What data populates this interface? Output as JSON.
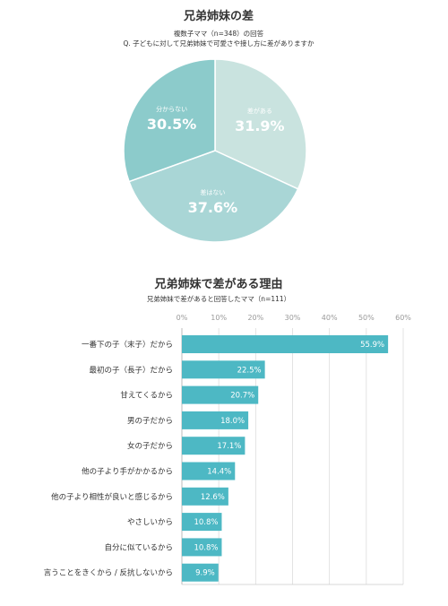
{
  "chart_data": [
    {
      "type": "pie",
      "title": "兄弟姉妹の差",
      "subtitle_1": "複数子ママ（n=348）の回答",
      "subtitle_2": "Q. 子どもに対して兄弟姉妹で可愛さや接し方に差がありますか",
      "slices": [
        {
          "label": "差がある",
          "value": 31.9,
          "value_label": "31.9%",
          "color": "#c9e3df"
        },
        {
          "label": "差はない",
          "value": 37.6,
          "value_label": "37.6%",
          "color": "#a9d6d6"
        },
        {
          "label": "分からない",
          "value": 30.5,
          "value_label": "30.5%",
          "color": "#8ccbcb"
        }
      ]
    },
    {
      "type": "bar",
      "orientation": "horizontal",
      "title": "兄弟姉妹で差がある理由",
      "subtitle": "兄弟姉妹で差があると回答したママ（n=111）",
      "xlim": [
        0,
        60
      ],
      "ticks": [
        "0%",
        "10%",
        "20%",
        "30%",
        "40%",
        "50%",
        "60%"
      ],
      "grid": true,
      "bar_color": "#4db8c4",
      "categories": [
        "一番下の子（末子）だから",
        "最初の子（長子）だから",
        "甘えてくるから",
        "男の子だから",
        "女の子だから",
        "他の子より手がかかるから",
        "他の子より相性が良いと感じるから",
        "やさしいから",
        "自分に似ているから",
        "言うことをきくから / 反抗しないから"
      ],
      "values": [
        55.9,
        22.5,
        20.7,
        18.0,
        17.1,
        14.4,
        12.6,
        10.8,
        10.8,
        9.9
      ],
      "value_labels": [
        "55.9%",
        "22.5%",
        "20.7%",
        "18.0%",
        "17.1%",
        "14.4%",
        "12.6%",
        "10.8%",
        "10.8%",
        "9.9%"
      ]
    }
  ]
}
